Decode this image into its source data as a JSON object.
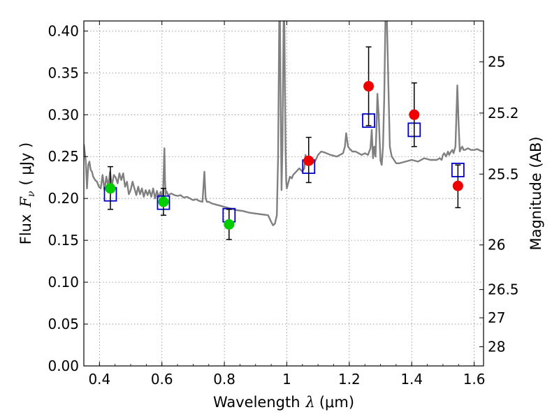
{
  "chart_data": {
    "type": "scatter",
    "title": "",
    "xlabel": "Wavelength  λ (μm)",
    "ylabel": "Flux  F_ν  ( μJy )",
    "ylabel_parts": {
      "prefix": "Flux",
      "symbol": "F",
      "subscript": "ν",
      "unit": "( μJy )"
    },
    "xlabel_parts": {
      "text": "Wavelength",
      "symbol": "λ",
      "unit": "(μm)"
    },
    "right_ylabel": "Magnitude (AB)",
    "xlim": [
      0.35,
      1.63
    ],
    "ylim": [
      0.0,
      0.412
    ],
    "grid": true,
    "xticks": [
      0.4,
      0.6,
      0.8,
      1.0,
      1.2,
      1.4,
      1.6
    ],
    "xtick_labels": [
      "0.4",
      "0.6",
      "0.8",
      "1",
      "1.2",
      "1.4",
      "1.6"
    ],
    "yticks": [
      0.0,
      0.05,
      0.1,
      0.15,
      0.2,
      0.25,
      0.3,
      0.35,
      0.4
    ],
    "ytick_labels": [
      "0.00",
      "0.05",
      "0.10",
      "0.15",
      "0.20",
      "0.25",
      "0.30",
      "0.35",
      "0.40"
    ],
    "right_ticks": [
      {
        "label": "25",
        "flux": 0.3631
      },
      {
        "label": "25.2",
        "flux": 0.302
      },
      {
        "label": "25.5",
        "flux": 0.2291
      },
      {
        "label": "26",
        "flux": 0.1445
      },
      {
        "label": "26.5",
        "flux": 0.0912
      },
      {
        "label": "27",
        "flux": 0.0575
      },
      {
        "label": "28",
        "flux": 0.0229
      }
    ],
    "colors": {
      "spectrum": "#808080",
      "green": "#00cc00",
      "red": "#ee0000",
      "model_box": "#0000cc",
      "errorbar": "#000000",
      "grid": "#888888"
    },
    "series": [
      {
        "kind": "line",
        "style": "spectrum",
        "x": [
          0.35,
          0.356,
          0.36,
          0.364,
          0.368,
          0.372,
          0.376,
          0.38,
          0.386,
          0.392,
          0.398,
          0.404,
          0.41,
          0.416,
          0.422,
          0.428,
          0.434,
          0.44,
          0.446,
          0.452,
          0.458,
          0.464,
          0.47,
          0.476,
          0.482,
          0.488,
          0.494,
          0.5,
          0.506,
          0.512,
          0.518,
          0.524,
          0.53,
          0.536,
          0.542,
          0.548,
          0.554,
          0.56,
          0.566,
          0.572,
          0.578,
          0.584,
          0.59,
          0.596,
          0.6,
          0.604,
          0.608,
          0.61,
          0.612,
          0.614,
          0.62,
          0.63,
          0.64,
          0.65,
          0.66,
          0.67,
          0.68,
          0.69,
          0.7,
          0.71,
          0.72,
          0.73,
          0.736,
          0.74,
          0.744,
          0.75,
          0.76,
          0.78,
          0.8,
          0.82,
          0.84,
          0.86,
          0.88,
          0.9,
          0.92,
          0.94,
          0.95,
          0.956,
          0.962,
          0.968,
          0.972,
          0.976,
          0.978,
          0.98,
          0.983,
          0.986,
          0.99,
          0.992,
          0.994,
          0.996,
          0.998,
          1.0,
          1.004,
          1.01,
          1.016,
          1.02,
          1.03,
          1.04,
          1.05,
          1.056,
          1.06,
          1.064,
          1.07,
          1.08,
          1.09,
          1.1,
          1.11,
          1.12,
          1.14,
          1.16,
          1.18,
          1.186,
          1.19,
          1.196,
          1.2,
          1.21,
          1.22,
          1.23,
          1.24,
          1.25,
          1.26,
          1.264,
          1.268,
          1.272,
          1.276,
          1.28,
          1.284,
          1.288,
          1.29,
          1.294,
          1.3,
          1.304,
          1.308,
          1.312,
          1.316,
          1.32,
          1.325,
          1.33,
          1.336,
          1.34,
          1.35,
          1.36,
          1.38,
          1.4,
          1.42,
          1.44,
          1.46,
          1.48,
          1.49,
          1.496,
          1.5,
          1.504,
          1.51,
          1.516,
          1.52,
          1.526,
          1.53,
          1.534,
          1.54,
          1.546,
          1.55,
          1.554,
          1.558,
          1.562,
          1.566,
          1.57,
          1.58,
          1.59,
          1.6,
          1.61,
          1.62,
          1.63
        ],
        "y": [
          0.265,
          0.245,
          0.212,
          0.24,
          0.244,
          0.234,
          0.232,
          0.226,
          0.222,
          0.22,
          0.214,
          0.212,
          0.228,
          0.21,
          0.226,
          0.214,
          0.232,
          0.215,
          0.228,
          0.225,
          0.218,
          0.23,
          0.222,
          0.23,
          0.214,
          0.22,
          0.205,
          0.21,
          0.22,
          0.212,
          0.204,
          0.214,
          0.205,
          0.212,
          0.202,
          0.21,
          0.204,
          0.21,
          0.202,
          0.212,
          0.2,
          0.209,
          0.201,
          0.208,
          0.2,
          0.21,
          0.26,
          0.22,
          0.205,
          0.209,
          0.204,
          0.206,
          0.204,
          0.203,
          0.204,
          0.201,
          0.202,
          0.2,
          0.198,
          0.199,
          0.197,
          0.196,
          0.232,
          0.2,
          0.196,
          0.196,
          0.194,
          0.192,
          0.19,
          0.188,
          0.186,
          0.185,
          0.183,
          0.182,
          0.181,
          0.18,
          0.172,
          0.168,
          0.17,
          0.18,
          0.25,
          0.42,
          0.42,
          0.33,
          0.21,
          0.26,
          0.42,
          0.42,
          0.33,
          0.26,
          0.22,
          0.212,
          0.218,
          0.226,
          0.224,
          0.228,
          0.232,
          0.236,
          0.232,
          0.236,
          0.252,
          0.24,
          0.244,
          0.242,
          0.244,
          0.252,
          0.256,
          0.255,
          0.252,
          0.25,
          0.254,
          0.262,
          0.278,
          0.262,
          0.26,
          0.256,
          0.256,
          0.254,
          0.252,
          0.254,
          0.252,
          0.256,
          0.26,
          0.282,
          0.248,
          0.262,
          0.25,
          0.295,
          0.325,
          0.3,
          0.245,
          0.24,
          0.262,
          0.32,
          0.42,
          0.42,
          0.34,
          0.262,
          0.25,
          0.248,
          0.242,
          0.242,
          0.244,
          0.246,
          0.244,
          0.248,
          0.246,
          0.246,
          0.248,
          0.246,
          0.252,
          0.254,
          0.25,
          0.256,
          0.252,
          0.256,
          0.258,
          0.254,
          0.262,
          0.335,
          0.29,
          0.256,
          0.26,
          0.262,
          0.258,
          0.258,
          0.26,
          0.258,
          0.258,
          0.259,
          0.257,
          0.256
        ]
      },
      {
        "kind": "model_boxes",
        "style": "open blue square",
        "points": [
          {
            "x": 0.435,
            "y": 0.205
          },
          {
            "x": 0.605,
            "y": 0.195
          },
          {
            "x": 0.815,
            "y": 0.18
          },
          {
            "x": 1.07,
            "y": 0.238
          },
          {
            "x": 1.262,
            "y": 0.293
          },
          {
            "x": 1.408,
            "y": 0.282
          },
          {
            "x": 1.548,
            "y": 0.234
          }
        ]
      },
      {
        "kind": "points",
        "style": "green filled circle with error bar",
        "points": [
          {
            "x": 0.435,
            "y": 0.212,
            "yerr_low": 0.187,
            "yerr_high": 0.238
          },
          {
            "x": 0.605,
            "y": 0.196,
            "yerr_low": 0.18,
            "yerr_high": 0.212
          },
          {
            "x": 0.815,
            "y": 0.169,
            "yerr_low": 0.151,
            "yerr_high": 0.187
          }
        ]
      },
      {
        "kind": "points",
        "style": "red filled circle with error bar",
        "points": [
          {
            "x": 1.07,
            "y": 0.245,
            "yerr_low": 0.219,
            "yerr_high": 0.273
          },
          {
            "x": 1.262,
            "y": 0.334,
            "yerr_low": 0.287,
            "yerr_high": 0.381
          },
          {
            "x": 1.408,
            "y": 0.3,
            "yerr_low": 0.262,
            "yerr_high": 0.338
          },
          {
            "x": 1.548,
            "y": 0.215,
            "yerr_low": 0.189,
            "yerr_high": 0.24
          }
        ]
      }
    ]
  }
}
